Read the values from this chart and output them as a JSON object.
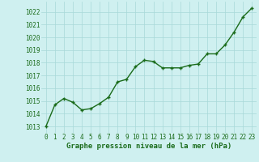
{
  "x": [
    0,
    1,
    2,
    3,
    4,
    5,
    6,
    7,
    8,
    9,
    10,
    11,
    12,
    13,
    14,
    15,
    16,
    17,
    18,
    19,
    20,
    21,
    22,
    23
  ],
  "y": [
    1013.0,
    1014.7,
    1015.2,
    1014.9,
    1014.3,
    1014.4,
    1014.8,
    1015.3,
    1016.5,
    1016.7,
    1017.7,
    1018.2,
    1018.1,
    1017.6,
    1017.6,
    1017.6,
    1017.8,
    1017.9,
    1018.7,
    1018.7,
    1019.4,
    1020.4,
    1021.6,
    1022.3
  ],
  "ylim_min": 1012.5,
  "ylim_max": 1022.8,
  "yticks": [
    1013,
    1014,
    1015,
    1016,
    1017,
    1018,
    1019,
    1020,
    1021,
    1022
  ],
  "xticks": [
    0,
    1,
    2,
    3,
    4,
    5,
    6,
    7,
    8,
    9,
    10,
    11,
    12,
    13,
    14,
    15,
    16,
    17,
    18,
    19,
    20,
    21,
    22,
    23
  ],
  "line_color": "#1a6b1a",
  "marker": "+",
  "bg_color": "#cff0f0",
  "grid_color": "#a8d8d8",
  "xlabel": "Graphe pression niveau de la mer (hPa)",
  "xlabel_color": "#1a6b1a",
  "xlabel_fontsize": 6.5,
  "tick_fontsize": 5.5,
  "linewidth": 1.0,
  "markersize": 3.5,
  "marker_linewidth": 1.0
}
